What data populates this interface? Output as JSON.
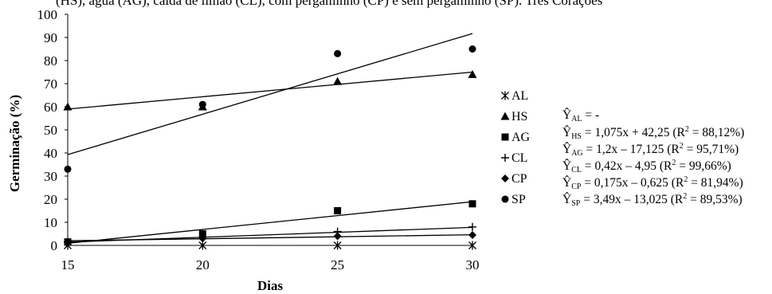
{
  "caption": "(HS), água (AG), calda de limão (CL), com pergaminho (CP) e sem pergaminho (SP). Três Corações",
  "chart_data": {
    "type": "scatter",
    "xlabel": "Dias",
    "ylabel": "Germinação (%)",
    "xlim": [
      15,
      30
    ],
    "ylim": [
      0,
      100
    ],
    "x_ticks": [
      "15",
      "20",
      "25",
      "30"
    ],
    "y_ticks": [
      "0",
      "10",
      "20",
      "30",
      "40",
      "50",
      "60",
      "70",
      "80",
      "90",
      "100"
    ],
    "grid": false,
    "legend_position": "right",
    "series": [
      {
        "name": "AL",
        "marker": "asterisk",
        "x": [
          15,
          20,
          25,
          30
        ],
        "y": [
          0,
          0,
          0,
          0
        ],
        "fit": null
      },
      {
        "name": "HS",
        "marker": "triangle",
        "x": [
          15,
          20,
          25,
          30
        ],
        "y": [
          60,
          60,
          71,
          74
        ],
        "fit": {
          "from": [
            15,
            59
          ],
          "to": [
            30,
            75
          ]
        }
      },
      {
        "name": "AG",
        "marker": "square",
        "x": [
          15,
          20,
          25,
          30
        ],
        "y": [
          1.5,
          5,
          15,
          18
        ],
        "fit": {
          "from": [
            15,
            0.9
          ],
          "to": [
            30,
            18.9
          ]
        }
      },
      {
        "name": "CL",
        "marker": "plus",
        "x": [
          15,
          20,
          25,
          30
        ],
        "y": [
          1.5,
          3.5,
          6,
          8
        ],
        "fit": {
          "from": [
            15,
            1.4
          ],
          "to": [
            30,
            7.8
          ]
        }
      },
      {
        "name": "CP",
        "marker": "diamond",
        "x": [
          15,
          20,
          25,
          30
        ],
        "y": [
          1.5,
          3,
          4,
          4.5
        ],
        "fit": {
          "from": [
            15,
            2.0
          ],
          "to": [
            30,
            4.6
          ]
        }
      },
      {
        "name": "SP",
        "marker": "circle",
        "x": [
          15,
          20,
          25,
          30
        ],
        "y": [
          33,
          61,
          83,
          85
        ],
        "fit": {
          "from": [
            15,
            39.3
          ],
          "to": [
            30,
            91.7
          ]
        }
      }
    ],
    "equations": [
      {
        "y": "Ŷ",
        "sub": "AL",
        "rhs": " = -",
        "r2": ""
      },
      {
        "y": "Ŷ",
        "sub": "HS",
        "rhs": " = 1,075x + 42,25 (R",
        "r2": " = 88,12%)"
      },
      {
        "y": "Ŷ",
        "sub": "AG",
        "rhs": " = 1,2x – 17,125 (R",
        "r2": " = 95,71%)"
      },
      {
        "y": "Ŷ",
        "sub": "CL",
        "rhs": " = 0,42x – 4,95 (R",
        "r2": " = 99,66%)"
      },
      {
        "y": "Ŷ",
        "sub": "CP",
        "rhs": " = 0,175x – 0,625 (R",
        "r2": " = 81,94%)"
      },
      {
        "y": "Ŷ",
        "sub": "SP",
        "rhs": " = 3,49x – 13,025 (R",
        "r2": " = 89,53%)"
      }
    ]
  }
}
